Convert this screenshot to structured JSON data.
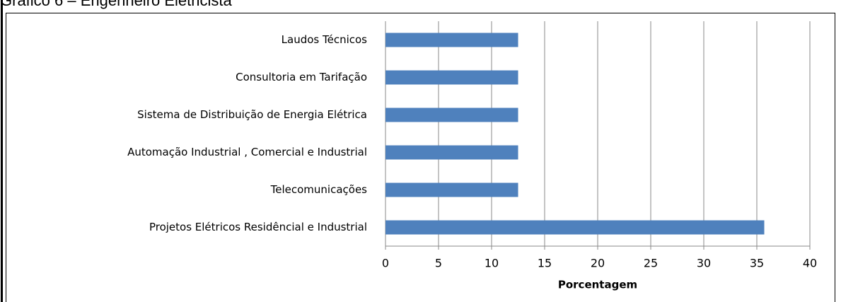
{
  "chart_data": {
    "type": "barh",
    "title": "Gráfico 6 – Engenheiro Eletricista",
    "categories": [
      "Laudos Técnicos",
      "Consultoria em Tarifação",
      "Sistema de Distribuição de Energia Elétrica",
      "Automação Industrial , Comercial e Industrial",
      "Telecomunicações",
      "Projetos Elétricos Residêncial e Industrial"
    ],
    "values": [
      12.5,
      12.5,
      12.5,
      12.5,
      12.5,
      35.7
    ],
    "color": "#4f81bd",
    "xlabel": "Porcentagem",
    "xlim": [
      0,
      40
    ],
    "xticks": [
      0,
      5,
      10,
      15,
      20,
      25,
      30,
      35,
      40
    ],
    "grid": true
  }
}
